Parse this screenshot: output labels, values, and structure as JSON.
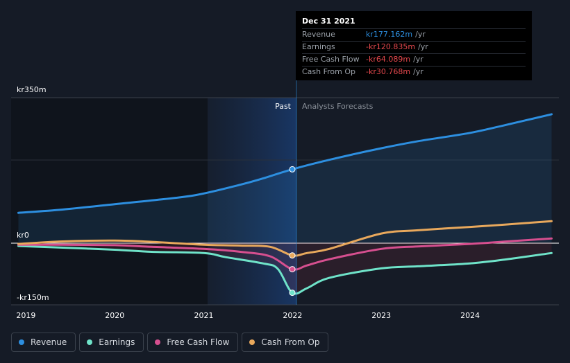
{
  "chart_data": {
    "type": "line",
    "x_ticks": [
      "2019",
      "2020",
      "2021",
      "2022",
      "2023",
      "2024"
    ],
    "y_ticks": [
      "kr350m",
      "kr0",
      "-kr150m"
    ],
    "ylim": [
      -150,
      350
    ],
    "xlim": [
      "2018-11",
      "2024-12-31"
    ],
    "past_label": "Past",
    "forecast_label": "Analysts Forecasts",
    "divider_date": "2021-12-31",
    "series": [
      {
        "name": "Revenue",
        "color": "#2d8fe0",
        "points": [
          [
            "2018-12",
            72
          ],
          [
            "2019-06",
            80
          ],
          [
            "2020-01",
            93
          ],
          [
            "2020-06",
            102
          ],
          [
            "2020-12",
            115
          ],
          [
            "2021-06",
            140
          ],
          [
            "2021-09",
            155
          ],
          [
            "2021-12-31",
            177.162
          ],
          [
            "2022-06",
            200
          ],
          [
            "2023-01",
            228
          ],
          [
            "2023-06",
            245
          ],
          [
            "2024-01",
            265
          ],
          [
            "2024-06",
            285
          ],
          [
            "2024-12",
            310
          ]
        ]
      },
      {
        "name": "Earnings",
        "color": "#6fe3c9",
        "points": [
          [
            "2018-12",
            -8
          ],
          [
            "2019-06",
            -12
          ],
          [
            "2020-01",
            -17
          ],
          [
            "2020-06",
            -22
          ],
          [
            "2021-01",
            -25
          ],
          [
            "2021-04",
            -35
          ],
          [
            "2021-09",
            -50
          ],
          [
            "2021-11",
            -63
          ],
          [
            "2021-12-31",
            -120.835
          ],
          [
            "2022-03",
            -110
          ],
          [
            "2022-06",
            -85
          ],
          [
            "2023-01",
            -62
          ],
          [
            "2023-06",
            -57
          ],
          [
            "2024-01",
            -50
          ],
          [
            "2024-06",
            -40
          ],
          [
            "2024-12",
            -25
          ]
        ]
      },
      {
        "name": "Free Cash Flow",
        "color": "#d64f8f",
        "points": [
          [
            "2018-12",
            -5
          ],
          [
            "2019-06",
            -5
          ],
          [
            "2020-01",
            -6
          ],
          [
            "2020-06",
            -10
          ],
          [
            "2021-01",
            -15
          ],
          [
            "2021-06",
            -22
          ],
          [
            "2021-10",
            -33
          ],
          [
            "2021-12-31",
            -64.089
          ],
          [
            "2022-03",
            -55
          ],
          [
            "2022-06",
            -40
          ],
          [
            "2023-01",
            -15
          ],
          [
            "2023-06",
            -9
          ],
          [
            "2024-01",
            -3
          ],
          [
            "2024-06",
            3
          ],
          [
            "2024-12",
            10
          ]
        ]
      },
      {
        "name": "Cash From Op",
        "color": "#e8a85c",
        "points": [
          [
            "2018-12",
            -3
          ],
          [
            "2019-06",
            3
          ],
          [
            "2020-01",
            5
          ],
          [
            "2020-06",
            2
          ],
          [
            "2021-01",
            -5
          ],
          [
            "2021-06",
            -7
          ],
          [
            "2021-10",
            -10
          ],
          [
            "2021-12-31",
            -30.768
          ],
          [
            "2022-03",
            -25
          ],
          [
            "2022-06",
            -15
          ],
          [
            "2023-01",
            22
          ],
          [
            "2023-06",
            30
          ],
          [
            "2024-01",
            38
          ],
          [
            "2024-06",
            44
          ],
          [
            "2024-12",
            52
          ]
        ]
      }
    ]
  },
  "tooltip": {
    "date": "Dec 31 2021",
    "unit": "/yr",
    "rows": [
      {
        "label": "Revenue",
        "value": "kr177.162m",
        "color": "#2d8fe0"
      },
      {
        "label": "Earnings",
        "value": "-kr120.835m",
        "color": "#e5484d"
      },
      {
        "label": "Free Cash Flow",
        "value": "-kr64.089m",
        "color": "#e5484d"
      },
      {
        "label": "Cash From Op",
        "value": "-kr30.768m",
        "color": "#e5484d"
      }
    ]
  },
  "legend": [
    {
      "label": "Revenue",
      "color": "#2d8fe0"
    },
    {
      "label": "Earnings",
      "color": "#6fe3c9"
    },
    {
      "label": "Free Cash Flow",
      "color": "#d64f8f"
    },
    {
      "label": "Cash From Op",
      "color": "#e8a85c"
    }
  ]
}
